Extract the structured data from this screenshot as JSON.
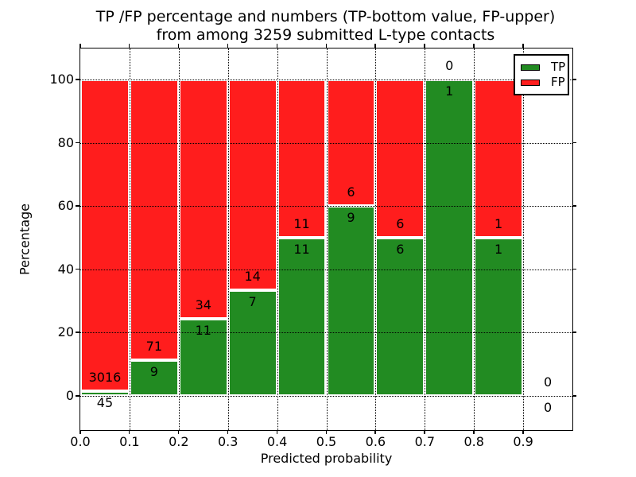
{
  "title": {
    "line1": "TP /FP percentage and numbers (TP-bottom value, FP-upper)",
    "line2": "from among 3259 submitted L-type contacts"
  },
  "axes": {
    "xlabel": "Predicted probability",
    "ylabel": "Percentage",
    "x_tick_labels": [
      "0.0",
      "0.1",
      "0.2",
      "0.3",
      "0.4",
      "0.5",
      "0.6",
      "0.7",
      "0.8",
      "0.9"
    ],
    "y_tick_labels": [
      "0",
      "20",
      "40",
      "60",
      "80",
      "100"
    ],
    "y_tick_values": [
      0,
      20,
      40,
      60,
      80,
      100
    ]
  },
  "legend": {
    "items": [
      {
        "label": "TP",
        "color": "#228b22"
      },
      {
        "label": "FP",
        "color": "#ff1d1d"
      }
    ]
  },
  "colors": {
    "tp": "#228b22",
    "fp": "#ff1d1d",
    "bar_edge": "#ffffff",
    "grid": "#000000",
    "background": "#ffffff"
  },
  "chart_data": {
    "type": "bar",
    "stacked": true,
    "percent_normalized": true,
    "title": "TP /FP percentage and numbers (TP-bottom value, FP-upper) from among 3259 submitted L-type contacts",
    "xlabel": "Predicted probability",
    "ylabel": "Percentage",
    "total_submitted": 3259,
    "bins": [
      "0.0-0.1",
      "0.1-0.2",
      "0.2-0.3",
      "0.3-0.4",
      "0.4-0.5",
      "0.5-0.6",
      "0.6-0.7",
      "0.7-0.8",
      "0.8-0.9",
      "0.9-1.0"
    ],
    "series": [
      {
        "name": "TP",
        "counts": [
          45,
          9,
          11,
          7,
          11,
          9,
          6,
          1,
          1,
          0
        ],
        "percent": [
          1.47,
          11.25,
          24.44,
          33.33,
          50,
          60,
          50,
          100,
          50,
          0
        ]
      },
      {
        "name": "FP",
        "counts": [
          3016,
          71,
          34,
          14,
          11,
          6,
          6,
          0,
          1,
          0
        ],
        "percent": [
          98.53,
          88.75,
          75.56,
          66.67,
          50,
          40,
          50,
          0,
          50,
          0
        ]
      }
    ],
    "xlim": [
      0.0,
      1.0
    ],
    "ylim": [
      -10,
      110
    ],
    "grid": "dotted",
    "legend_position": "upper right"
  }
}
